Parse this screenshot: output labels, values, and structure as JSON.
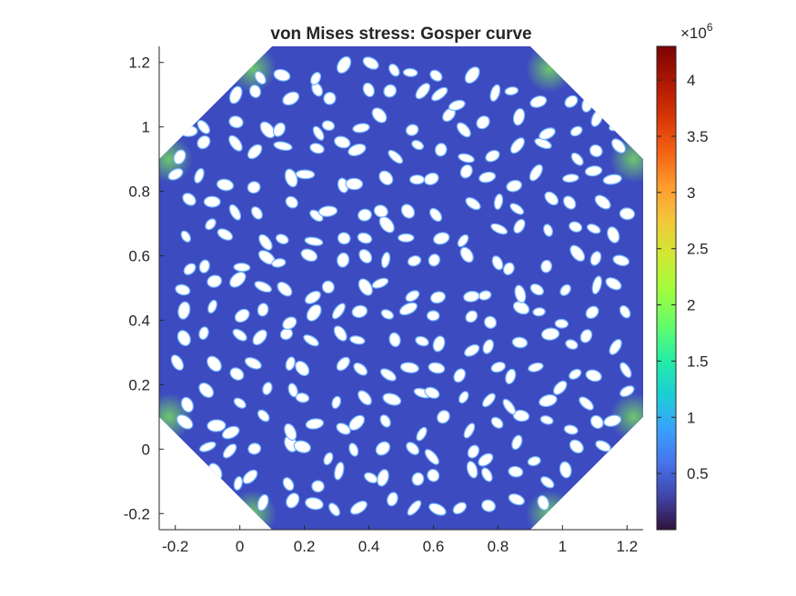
{
  "chart_data": {
    "type": "heatmap",
    "title": "von Mises stress: Gosper curve",
    "xlabel": "",
    "ylabel": "",
    "xlim": [
      -0.25,
      1.25
    ],
    "ylim": [
      -0.25,
      1.25
    ],
    "xticks": [
      -0.2,
      0,
      0.2,
      0.4,
      0.6,
      0.8,
      1,
      1.2
    ],
    "xtick_labels": [
      "-0.2",
      "0",
      "0.2",
      "0.4",
      "0.6",
      "0.8",
      "1",
      "1.2"
    ],
    "yticks": [
      -0.2,
      0,
      0.2,
      0.4,
      0.6,
      0.8,
      1,
      1.2
    ],
    "ytick_labels": [
      "-0.2",
      "0",
      "0.2",
      "0.4",
      "0.6",
      "0.8",
      "1",
      "1.2"
    ],
    "domain_outline": [
      [
        0.1,
        -0.25
      ],
      [
        0.9,
        -0.25
      ],
      [
        1.25,
        0.1
      ],
      [
        1.25,
        0.9
      ],
      [
        0.9,
        1.25
      ],
      [
        0.1,
        1.25
      ],
      [
        -0.25,
        0.9
      ],
      [
        -0.25,
        0.1
      ]
    ],
    "background_stress": 400000,
    "colorbar": {
      "colormap": "turbo",
      "min": 0,
      "max": 4300000,
      "ticks": [
        500000,
        1000000,
        1500000,
        2000000,
        2500000,
        3000000,
        3500000,
        4000000
      ],
      "tick_labels": [
        "0.5",
        "1",
        "1.5",
        "2",
        "2.5",
        "3",
        "3.5",
        "4"
      ],
      "exponent_base": "×10",
      "exponent_power": "6"
    },
    "stress_hotspots": [
      {
        "x": 0.04,
        "y": 1.18,
        "value": 1600000
      },
      {
        "x": 0.96,
        "y": 1.18,
        "value": 1600000
      },
      {
        "x": -0.22,
        "y": 0.9,
        "value": 2000000
      },
      {
        "x": 1.22,
        "y": 0.9,
        "value": 2000000
      },
      {
        "x": -0.22,
        "y": 0.1,
        "value": 2000000
      },
      {
        "x": 1.22,
        "y": 0.1,
        "value": 2000000
      },
      {
        "x": 0.04,
        "y": -0.2,
        "value": 1700000
      },
      {
        "x": 0.96,
        "y": -0.2,
        "value": 1700000
      }
    ],
    "holes": {
      "count": 300,
      "shape": "ellipse",
      "approx_semi_axes": [
        0.025,
        0.016
      ]
    }
  }
}
